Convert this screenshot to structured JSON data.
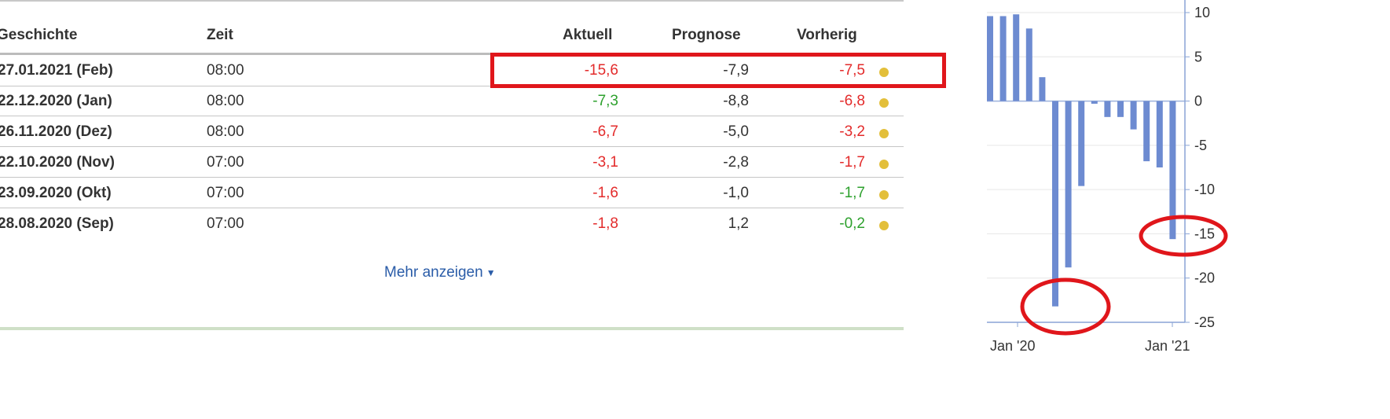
{
  "table": {
    "headers": {
      "geschichte": "Geschichte",
      "zeit": "Zeit",
      "aktuell": "Aktuell",
      "prognose": "Prognose",
      "vorherig": "Vorherig"
    },
    "rows": [
      {
        "date": "27.01.2021 (Feb)",
        "time": "08:00",
        "aktuell": "-15,6",
        "aktuell_color": "red",
        "prognose": "-7,9",
        "vorherig": "-7,5",
        "vorherig_color": "red"
      },
      {
        "date": "22.12.2020 (Jan)",
        "time": "08:00",
        "aktuell": "-7,3",
        "aktuell_color": "green",
        "prognose": "-8,8",
        "vorherig": "-6,8",
        "vorherig_color": "red"
      },
      {
        "date": "26.11.2020 (Dez)",
        "time": "08:00",
        "aktuell": "-6,7",
        "aktuell_color": "red",
        "prognose": "-5,0",
        "vorherig": "-3,2",
        "vorherig_color": "red"
      },
      {
        "date": "22.10.2020 (Nov)",
        "time": "07:00",
        "aktuell": "-3,1",
        "aktuell_color": "red",
        "prognose": "-2,8",
        "vorherig": "-1,7",
        "vorherig_color": "red"
      },
      {
        "date": "23.09.2020 (Okt)",
        "time": "07:00",
        "aktuell": "-1,6",
        "aktuell_color": "red",
        "prognose": "-1,0",
        "vorherig": "-1,7",
        "vorherig_color": "green"
      },
      {
        "date": "28.08.2020 (Sep)",
        "time": "07:00",
        "aktuell": "-1,8",
        "aktuell_color": "red",
        "prognose": "1,2",
        "vorherig": "-0,2",
        "vorherig_color": "green"
      }
    ],
    "more_label": "Mehr anzeigen",
    "more_icon": "chevron-down-icon"
  },
  "colors": {
    "red": "#e32b2b",
    "green": "#2ea12e",
    "dot": "#e3bf3a",
    "link": "#2a5ca8",
    "bar": "#6d8bd1",
    "annotation": "#e0161b"
  },
  "chart_data": {
    "type": "bar",
    "y_ticks": [
      "10",
      "5",
      "0",
      "-5",
      "-10",
      "-15",
      "-20",
      "-25"
    ],
    "x_ticks": [
      "Jan '20",
      "Jan '21"
    ],
    "values": [
      9.6,
      9.6,
      9.8,
      8.2,
      2.7,
      -23.2,
      -18.8,
      -9.6,
      -0.3,
      -1.8,
      -1.8,
      -3.2,
      -6.8,
      -7.5,
      -15.6
    ],
    "ylim": [
      -25,
      10
    ],
    "grid": true,
    "annotations": [
      "red ellipse around the minimum bar",
      "red ellipse around the last bar"
    ]
  }
}
